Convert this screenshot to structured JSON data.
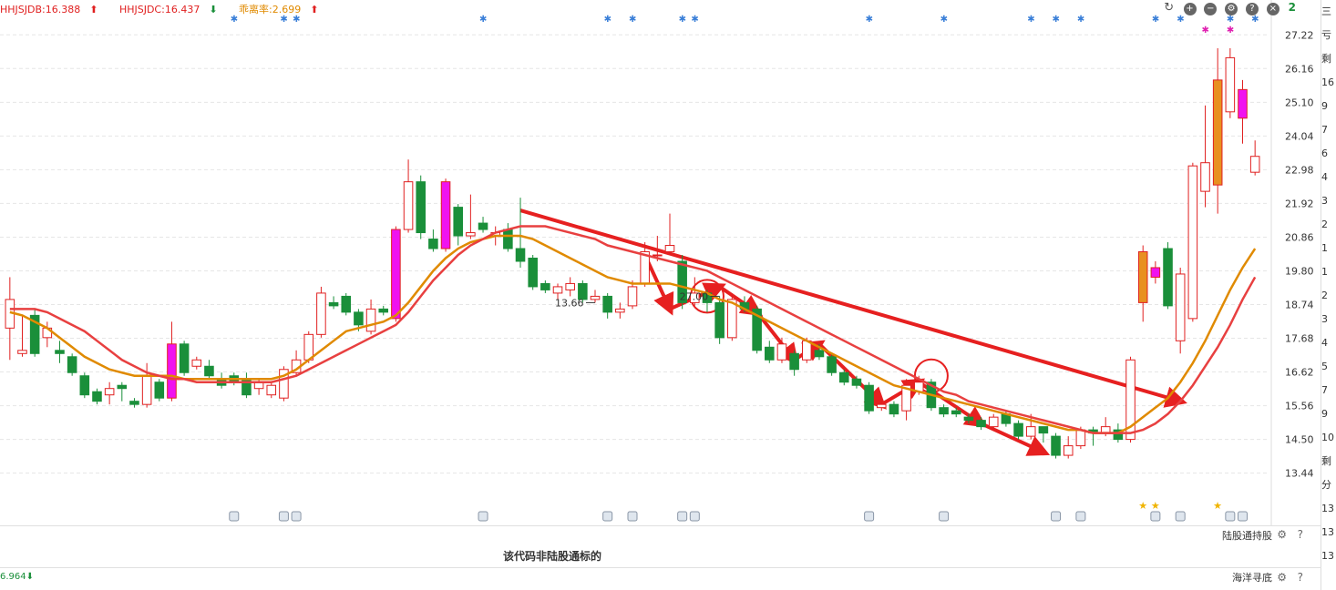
{
  "legend": {
    "items": [
      {
        "label": "HHJSJDB:16.388",
        "arrow": "⬆",
        "color": "#e02020"
      },
      {
        "label": "HHJSJDC:16.437",
        "arrow": "⬇",
        "color": "#e02020"
      },
      {
        "label": "乖离率:2.699",
        "arrow": "⬆",
        "color": "#e08a00"
      }
    ]
  },
  "toolbar": {
    "icons": [
      "refresh-icon",
      "zoom-in-icon",
      "zoom-out-icon",
      "settings-icon",
      "help-icon",
      "close-icon"
    ],
    "corner_value": "2"
  },
  "side_panel": [
    "三",
    "亏",
    "剩",
    "16",
    "9",
    "7",
    "6",
    "4",
    "3",
    "2",
    "1",
    "1",
    "2",
    "3",
    "4",
    "5",
    "7",
    "9",
    "10",
    "剩",
    "分",
    "13",
    "13",
    "13"
  ],
  "lugutong": {
    "label": "陆股通持股"
  },
  "notice": "该代码非陆股通标的",
  "bottom": {
    "value": "6.964",
    "arrow": "⬇",
    "label": "海洋寻底"
  },
  "chart_data": {
    "type": "candlestick",
    "y_ticks": [
      27.22,
      26.16,
      25.1,
      24.04,
      22.98,
      21.92,
      20.86,
      19.8,
      18.74,
      17.68,
      16.62,
      15.56,
      14.5,
      13.44
    ],
    "ylim": [
      13.0,
      27.6
    ],
    "annotations": [
      {
        "text": "27.00",
        "index": 57
      },
      {
        "text": "13.66",
        "index": 47
      }
    ],
    "candles": [
      [
        18.0,
        18.9,
        19.6,
        17.0
      ],
      [
        17.2,
        17.3,
        18.4,
        17.1
      ],
      [
        18.4,
        17.2,
        18.6,
        17.1
      ],
      [
        17.7,
        18.0,
        18.2,
        17.4
      ],
      [
        17.3,
        17.2,
        17.6,
        16.9
      ],
      [
        17.1,
        16.6,
        17.2,
        16.5
      ],
      [
        16.5,
        15.9,
        16.6,
        15.8
      ],
      [
        16.0,
        15.7,
        16.1,
        15.6
      ],
      [
        15.9,
        16.1,
        16.3,
        15.6
      ],
      [
        16.2,
        16.1,
        16.3,
        15.7
      ],
      [
        15.7,
        15.6,
        15.8,
        15.5
      ],
      [
        15.6,
        16.5,
        16.9,
        15.5
      ],
      [
        16.3,
        15.8,
        16.4,
        15.7
      ],
      [
        15.8,
        17.5,
        18.2,
        15.7
      ],
      [
        17.5,
        16.6,
        17.6,
        16.5
      ],
      [
        16.8,
        17.0,
        17.1,
        16.7
      ],
      [
        16.8,
        16.5,
        17.0,
        16.4
      ],
      [
        16.4,
        16.2,
        16.6,
        16.1
      ],
      [
        16.5,
        16.3,
        16.6,
        16.2
      ],
      [
        16.4,
        15.9,
        16.6,
        15.8
      ],
      [
        16.1,
        16.3,
        16.4,
        15.9
      ],
      [
        15.9,
        16.2,
        16.3,
        15.8
      ],
      [
        15.8,
        16.7,
        16.8,
        15.7
      ],
      [
        16.6,
        17.0,
        17.3,
        16.5
      ],
      [
        17.0,
        17.8,
        17.9,
        16.9
      ],
      [
        17.8,
        19.1,
        19.3,
        17.7
      ],
      [
        18.8,
        18.7,
        19.0,
        18.6
      ],
      [
        19.0,
        18.5,
        19.1,
        18.4
      ],
      [
        18.5,
        18.1,
        18.6,
        17.9
      ],
      [
        17.9,
        18.6,
        18.9,
        17.8
      ],
      [
        18.6,
        18.5,
        18.7,
        18.4
      ],
      [
        18.3,
        21.1,
        21.2,
        18.2
      ],
      [
        21.1,
        22.6,
        23.3,
        21.0
      ],
      [
        22.6,
        21.0,
        22.8,
        20.8
      ],
      [
        20.8,
        20.5,
        21.1,
        20.4
      ],
      [
        20.5,
        22.6,
        22.7,
        20.4
      ],
      [
        21.8,
        20.9,
        21.9,
        20.6
      ],
      [
        20.9,
        21.0,
        22.2,
        20.8
      ],
      [
        21.3,
        21.1,
        21.5,
        21.0
      ],
      [
        20.9,
        21.0,
        21.2,
        20.6
      ],
      [
        21.1,
        20.5,
        21.3,
        20.4
      ],
      [
        20.5,
        20.1,
        22.1,
        19.9
      ],
      [
        20.2,
        19.3,
        20.3,
        19.2
      ],
      [
        19.4,
        19.2,
        19.5,
        19.1
      ],
      [
        19.1,
        19.3,
        19.4,
        18.9
      ],
      [
        19.2,
        19.4,
        19.6,
        19.0
      ],
      [
        19.4,
        18.9,
        19.5,
        18.8
      ],
      [
        18.9,
        19.0,
        19.2,
        18.8
      ],
      [
        19.0,
        18.5,
        19.1,
        18.3
      ],
      [
        18.5,
        18.6,
        18.8,
        18.3
      ],
      [
        18.7,
        19.3,
        19.5,
        18.6
      ],
      [
        19.4,
        20.4,
        20.7,
        19.3
      ],
      [
        20.3,
        20.3,
        20.9,
        20.1
      ],
      [
        20.4,
        20.6,
        21.6,
        20.3
      ],
      [
        20.1,
        18.8,
        20.3,
        18.6
      ],
      [
        18.8,
        19.1,
        19.6,
        18.7
      ],
      [
        19.1,
        18.8,
        19.2,
        18.5
      ],
      [
        18.8,
        17.7,
        19.0,
        17.5
      ],
      [
        17.7,
        18.9,
        19.1,
        17.6
      ],
      [
        18.8,
        18.6,
        19.0,
        18.5
      ],
      [
        18.6,
        17.3,
        18.7,
        17.2
      ],
      [
        17.4,
        17.0,
        17.6,
        16.9
      ],
      [
        17.0,
        17.5,
        17.7,
        16.9
      ],
      [
        17.2,
        16.7,
        17.3,
        16.5
      ],
      [
        17.0,
        17.6,
        17.7,
        16.9
      ],
      [
        17.3,
        17.1,
        17.5,
        17.0
      ],
      [
        17.1,
        16.6,
        17.2,
        16.5
      ],
      [
        16.6,
        16.3,
        16.7,
        16.2
      ],
      [
        16.4,
        16.2,
        16.5,
        16.1
      ],
      [
        16.2,
        15.4,
        16.3,
        15.3
      ],
      [
        15.5,
        15.6,
        15.8,
        15.4
      ],
      [
        15.6,
        15.3,
        15.7,
        15.2
      ],
      [
        15.4,
        16.2,
        16.4,
        15.1
      ],
      [
        16.0,
        16.3,
        16.5,
        15.9
      ],
      [
        16.3,
        15.5,
        16.4,
        15.4
      ],
      [
        15.5,
        15.3,
        15.6,
        15.2
      ],
      [
        15.4,
        15.3,
        15.5,
        15.2
      ],
      [
        15.2,
        15.1,
        15.3,
        15.0
      ],
      [
        15.1,
        14.9,
        15.2,
        14.8
      ],
      [
        14.9,
        15.2,
        15.3,
        14.8
      ],
      [
        15.3,
        15.0,
        15.4,
        14.9
      ],
      [
        15.0,
        14.6,
        15.1,
        14.5
      ],
      [
        14.6,
        14.9,
        15.3,
        14.5
      ],
      [
        14.9,
        14.7,
        14.9,
        14.4
      ],
      [
        14.6,
        14.0,
        14.7,
        13.9
      ],
      [
        14.0,
        14.3,
        14.6,
        13.9
      ],
      [
        14.3,
        14.8,
        14.9,
        14.2
      ],
      [
        14.8,
        14.7,
        14.9,
        14.3
      ],
      [
        14.7,
        14.9,
        15.2,
        14.6
      ],
      [
        14.8,
        14.5,
        15.0,
        14.4
      ],
      [
        14.5,
        17.0,
        17.1,
        14.4
      ],
      [
        18.8,
        20.4,
        20.6,
        18.2
      ],
      [
        19.6,
        19.9,
        20.1,
        19.4
      ],
      [
        20.5,
        18.7,
        20.7,
        18.6
      ],
      [
        17.6,
        19.7,
        19.9,
        17.2
      ],
      [
        18.3,
        23.1,
        23.2,
        18.2
      ],
      [
        22.3,
        23.2,
        25.0,
        21.8
      ],
      [
        22.5,
        25.8,
        26.8,
        21.6
      ],
      [
        24.8,
        26.5,
        26.8,
        24.6
      ],
      [
        25.5,
        24.6,
        25.8,
        23.8
      ],
      [
        22.9,
        23.4,
        23.9,
        22.8
      ]
    ],
    "special_bars": {
      "magenta": [
        13,
        31,
        35,
        92,
        99
      ],
      "orange": [
        91,
        97
      ]
    },
    "series": [
      {
        "name": "HHJSJDB",
        "color": "#e08a00",
        "values": [
          18.5,
          18.4,
          18.2,
          18.0,
          17.7,
          17.4,
          17.1,
          16.9,
          16.7,
          16.6,
          16.5,
          16.5,
          16.5,
          16.5,
          16.4,
          16.4,
          16.4,
          16.4,
          16.4,
          16.4,
          16.4,
          16.4,
          16.5,
          16.7,
          17.0,
          17.3,
          17.6,
          17.9,
          18.0,
          18.1,
          18.2,
          18.4,
          18.8,
          19.3,
          19.8,
          20.2,
          20.5,
          20.7,
          20.8,
          20.9,
          20.9,
          20.9,
          20.8,
          20.6,
          20.4,
          20.2,
          20.0,
          19.8,
          19.6,
          19.5,
          19.4,
          19.4,
          19.4,
          19.4,
          19.3,
          19.2,
          19.1,
          18.9,
          18.8,
          18.6,
          18.4,
          18.2,
          18.0,
          17.8,
          17.6,
          17.4,
          17.2,
          17.0,
          16.8,
          16.6,
          16.4,
          16.2,
          16.1,
          16.0,
          15.9,
          15.8,
          15.7,
          15.6,
          15.5,
          15.4,
          15.3,
          15.2,
          15.1,
          15.0,
          14.9,
          14.8,
          14.8,
          14.7,
          14.7,
          14.7,
          14.9,
          15.2,
          15.5,
          15.8,
          16.3,
          16.9,
          17.6,
          18.4,
          19.2,
          19.9,
          20.5
        ]
      },
      {
        "name": "HHJSJDC",
        "color": "#e84040",
        "values": [
          18.6,
          18.6,
          18.6,
          18.5,
          18.3,
          18.1,
          17.9,
          17.6,
          17.3,
          17.0,
          16.8,
          16.6,
          16.5,
          16.4,
          16.4,
          16.3,
          16.3,
          16.3,
          16.3,
          16.3,
          16.3,
          16.3,
          16.4,
          16.5,
          16.7,
          16.9,
          17.1,
          17.3,
          17.5,
          17.7,
          17.9,
          18.1,
          18.5,
          19.0,
          19.5,
          19.9,
          20.3,
          20.6,
          20.8,
          21.0,
          21.1,
          21.2,
          21.2,
          21.2,
          21.1,
          21.0,
          20.9,
          20.8,
          20.6,
          20.5,
          20.4,
          20.3,
          20.2,
          20.1,
          20.0,
          19.9,
          19.8,
          19.6,
          19.4,
          19.2,
          19.0,
          18.8,
          18.6,
          18.4,
          18.2,
          18.0,
          17.8,
          17.6,
          17.4,
          17.2,
          17.0,
          16.8,
          16.6,
          16.4,
          16.2,
          16.0,
          15.9,
          15.7,
          15.6,
          15.5,
          15.4,
          15.3,
          15.2,
          15.1,
          15.0,
          14.9,
          14.8,
          14.7,
          14.7,
          14.7,
          14.7,
          14.8,
          15.0,
          15.3,
          15.7,
          16.2,
          16.8,
          17.4,
          18.1,
          18.9,
          19.6
        ]
      }
    ]
  }
}
